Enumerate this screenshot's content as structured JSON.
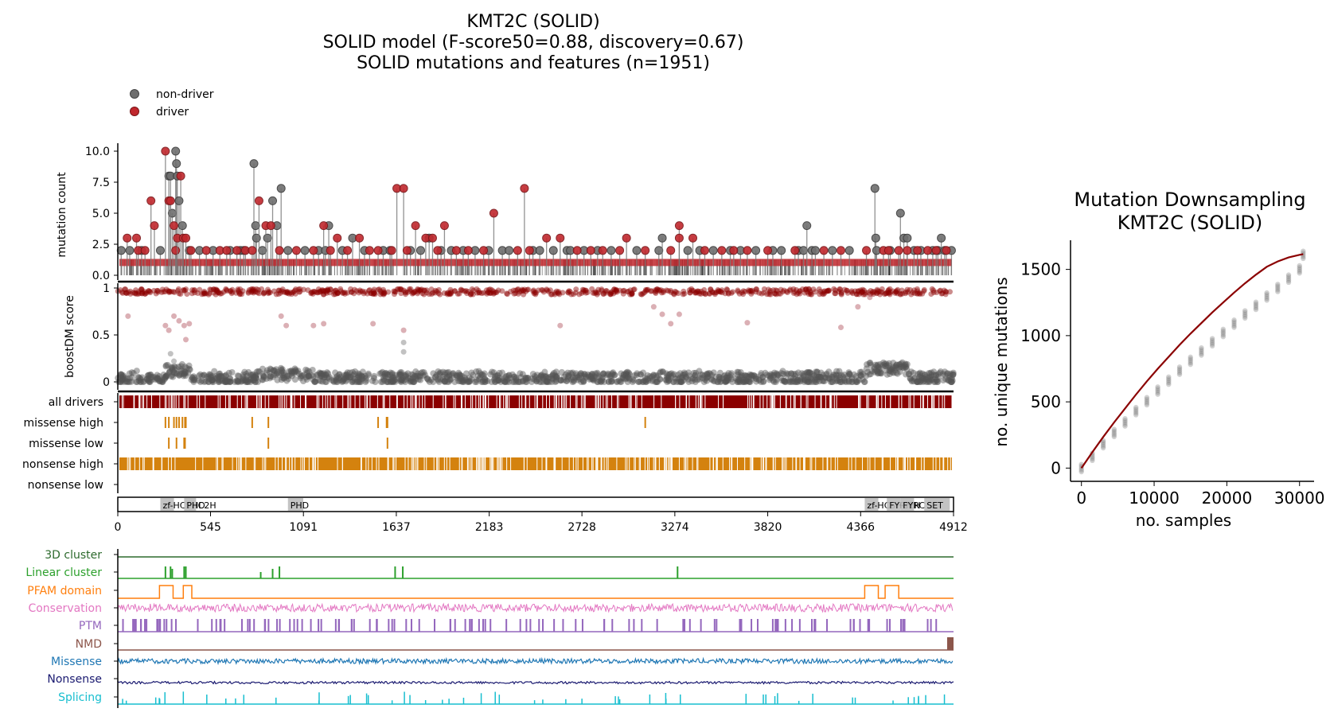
{
  "title": {
    "line1": "KMT2C (SOLID)",
    "line2": "SOLID model (F-score50=0.88, discovery=0.67)",
    "line3": "SOLID mutations and features (n=1951)"
  },
  "legend": {
    "non_driver": "non-driver",
    "driver": "driver"
  },
  "colors": {
    "driver": "#c0272d",
    "non_driver": "#6e6e6e",
    "dark_red": "#8b0000",
    "orange_bar": "#d4820e",
    "3d": "#2d6a2d",
    "linear": "#2ca02c",
    "pfam": "#ff7f0e",
    "conservation": "#e377c2",
    "ptm": "#9467bd",
    "nmd": "#8c564b",
    "missense": "#1f77b4",
    "nonsense": "#191970",
    "splicing": "#17becf"
  },
  "lollipop_panel": {
    "ylabel": "mutation count",
    "yticks": [
      "0.0",
      "2.5",
      "5.0",
      "7.5",
      "10.0"
    ],
    "ylim": [
      0,
      10.5
    ]
  },
  "score_panel": {
    "ylabel": "boostDM score",
    "yticks": [
      "0",
      "0.5",
      "1"
    ]
  },
  "track_panel": {
    "labels": [
      "all drivers",
      "missense high",
      "missense low",
      "nonsense high",
      "nonsense low"
    ]
  },
  "domains": [
    {
      "label": "zf-HC5HC2H",
      "start": 250,
      "end": 330
    },
    {
      "label": "PHD",
      "start": 390,
      "end": 460
    },
    {
      "label": "PHD",
      "start": 1000,
      "end": 1090
    },
    {
      "label": "zf-HC5HC2H",
      "start": 4390,
      "end": 4470
    },
    {
      "label": "FYRN",
      "start": 4520,
      "end": 4600
    },
    {
      "label": "FYRC",
      "start": 4600,
      "end": 4680
    },
    {
      "label": "SET",
      "start": 4740,
      "end": 4890
    }
  ],
  "xaxis": {
    "max": 4912,
    "ticks": [
      "0",
      "545",
      "1091",
      "1637",
      "2183",
      "2728",
      "3274",
      "3820",
      "4366",
      "4912"
    ]
  },
  "feature_tracks": {
    "labels": [
      "3D cluster",
      "Linear cluster",
      "PFAM domain",
      "Conservation",
      "PTM",
      "NMD",
      "Missense",
      "Nonsense",
      "Splicing"
    ]
  },
  "chart_data": [
    {
      "type": "scatter",
      "title": "KMT2C (SOLID)",
      "subtitle": "SOLID model (F-score50=0.88, discovery=0.67)",
      "xlabel": "",
      "ylabel": "mutation count",
      "xlim": [
        0,
        4912
      ],
      "ylim": [
        0,
        10.5
      ],
      "series": [
        {
          "name": "driver",
          "points": [
            [
              55,
              3
            ],
            [
              110,
              3
            ],
            [
              120,
              2
            ],
            [
              160,
              2
            ],
            [
              195,
              6
            ],
            [
              215,
              4
            ],
            [
              280,
              10
            ],
            [
              300,
              6
            ],
            [
              310,
              6
            ],
            [
              330,
              4
            ],
            [
              340,
              2
            ],
            [
              350,
              3
            ],
            [
              370,
              8
            ],
            [
              385,
              3
            ],
            [
              400,
              3
            ],
            [
              430,
              2
            ],
            [
              520,
              2
            ],
            [
              600,
              2
            ],
            [
              640,
              2
            ],
            [
              700,
              2
            ],
            [
              750,
              2
            ],
            [
              790,
              2
            ],
            [
              830,
              6
            ],
            [
              870,
              4
            ],
            [
              900,
              4
            ],
            [
              950,
              2
            ],
            [
              1050,
              2
            ],
            [
              1150,
              2
            ],
            [
              1210,
              4
            ],
            [
              1250,
              2
            ],
            [
              1290,
              3
            ],
            [
              1350,
              2
            ],
            [
              1420,
              3
            ],
            [
              1480,
              2
            ],
            [
              1530,
              2
            ],
            [
              1610,
              2
            ],
            [
              1640,
              7
            ],
            [
              1680,
              7
            ],
            [
              1700,
              2
            ],
            [
              1750,
              4
            ],
            [
              1810,
              3
            ],
            [
              1850,
              3
            ],
            [
              1880,
              2
            ],
            [
              1920,
              4
            ],
            [
              1990,
              2
            ],
            [
              2060,
              2
            ],
            [
              2150,
              2
            ],
            [
              2210,
              5
            ],
            [
              2350,
              2
            ],
            [
              2390,
              7
            ],
            [
              2420,
              2
            ],
            [
              2520,
              3
            ],
            [
              2600,
              3
            ],
            [
              2700,
              2
            ],
            [
              2780,
              2
            ],
            [
              2850,
              2
            ],
            [
              2950,
              2
            ],
            [
              2990,
              3
            ],
            [
              3100,
              2
            ],
            [
              3250,
              2
            ],
            [
              3300,
              4
            ],
            [
              3300,
              3
            ],
            [
              3380,
              3
            ],
            [
              3450,
              2
            ],
            [
              3550,
              2
            ],
            [
              3620,
              2
            ],
            [
              3700,
              2
            ],
            [
              3820,
              2
            ],
            [
              3980,
              2
            ],
            [
              4150,
              2
            ],
            [
              4250,
              2
            ],
            [
              4400,
              2
            ],
            [
              4500,
              2
            ],
            [
              4530,
              2
            ],
            [
              4590,
              2
            ],
            [
              4640,
              2
            ],
            [
              4700,
              2
            ],
            [
              4760,
              2
            ],
            [
              4810,
              2
            ],
            [
              4870,
              2
            ]
          ]
        },
        {
          "name": "non-driver",
          "points": [
            [
              20,
              2
            ],
            [
              70,
              2
            ],
            [
              140,
              2
            ],
            [
              250,
              2
            ],
            [
              300,
              8
            ],
            [
              310,
              8
            ],
            [
              320,
              5
            ],
            [
              340,
              10
            ],
            [
              345,
              9
            ],
            [
              350,
              8
            ],
            [
              360,
              6
            ],
            [
              380,
              4
            ],
            [
              420,
              2
            ],
            [
              480,
              2
            ],
            [
              560,
              2
            ],
            [
              660,
              2
            ],
            [
              720,
              2
            ],
            [
              740,
              2
            ],
            [
              800,
              9
            ],
            [
              810,
              4
            ],
            [
              815,
              3
            ],
            [
              850,
              2
            ],
            [
              880,
              3
            ],
            [
              910,
              6
            ],
            [
              935,
              4
            ],
            [
              960,
              7
            ],
            [
              1000,
              2
            ],
            [
              1100,
              2
            ],
            [
              1180,
              2
            ],
            [
              1220,
              2
            ],
            [
              1240,
              4
            ],
            [
              1320,
              2
            ],
            [
              1380,
              3
            ],
            [
              1450,
              2
            ],
            [
              1560,
              2
            ],
            [
              1600,
              2
            ],
            [
              1720,
              2
            ],
            [
              1780,
              2
            ],
            [
              1830,
              3
            ],
            [
              1900,
              2
            ],
            [
              1960,
              2
            ],
            [
              2030,
              2
            ],
            [
              2100,
              2
            ],
            [
              2180,
              2
            ],
            [
              2260,
              2
            ],
            [
              2300,
              2
            ],
            [
              2440,
              2
            ],
            [
              2480,
              2
            ],
            [
              2560,
              2
            ],
            [
              2640,
              2
            ],
            [
              2660,
              2
            ],
            [
              2740,
              2
            ],
            [
              2820,
              2
            ],
            [
              2900,
              2
            ],
            [
              3050,
              2
            ],
            [
              3180,
              2
            ],
            [
              3200,
              3
            ],
            [
              3350,
              2
            ],
            [
              3420,
              2
            ],
            [
              3500,
              2
            ],
            [
              3600,
              2
            ],
            [
              3660,
              2
            ],
            [
              3750,
              2
            ],
            [
              3850,
              2
            ],
            [
              3900,
              2
            ],
            [
              4000,
              2
            ],
            [
              4030,
              2
            ],
            [
              4050,
              4
            ],
            [
              4080,
              2
            ],
            [
              4100,
              2
            ],
            [
              4200,
              2
            ],
            [
              4300,
              2
            ],
            [
              4450,
              7
            ],
            [
              4455,
              3
            ],
            [
              4460,
              2
            ],
            [
              4540,
              2
            ],
            [
              4600,
              5
            ],
            [
              4620,
              3
            ],
            [
              4640,
              3
            ],
            [
              4680,
              2
            ],
            [
              4720,
              2
            ],
            [
              4790,
              2
            ],
            [
              4820,
              2
            ],
            [
              4840,
              3
            ],
            [
              4860,
              2
            ],
            [
              4900,
              2
            ]
          ]
        }
      ]
    },
    {
      "type": "line",
      "title": "Mutation Downsampling",
      "subtitle": "KMT2C (SOLID)",
      "xlabel": "no. samples",
      "ylabel": "no. unique mutations",
      "xlim": [
        -1500,
        32000
      ],
      "ylim": [
        -100,
        1720
      ],
      "xticks": [
        "0",
        "10000",
        "20000",
        "30000"
      ],
      "yticks": [
        "0",
        "500",
        "1000",
        "1500"
      ],
      "x": [
        0,
        1500,
        3000,
        4500,
        6000,
        7500,
        9000,
        10500,
        12000,
        13500,
        15000,
        16500,
        18000,
        19500,
        21000,
        22500,
        24000,
        25500,
        27000,
        28500,
        30000,
        30500
      ],
      "series": [
        {
          "name": "",
          "values": [
            0,
            85,
            180,
            265,
            345,
            430,
            505,
            585,
            660,
            735,
            810,
            880,
            950,
            1020,
            1090,
            1160,
            1225,
            1295,
            1360,
            1430,
            1500,
            1610
          ]
        },
        {
          "name": "",
          "values": [
            0,
            120,
            235,
            345,
            450,
            555,
            655,
            750,
            840,
            930,
            1015,
            1095,
            1175,
            1250,
            1325,
            1395,
            1460,
            1520,
            1560,
            1590,
            1610,
            1615
          ]
        }
      ]
    }
  ]
}
